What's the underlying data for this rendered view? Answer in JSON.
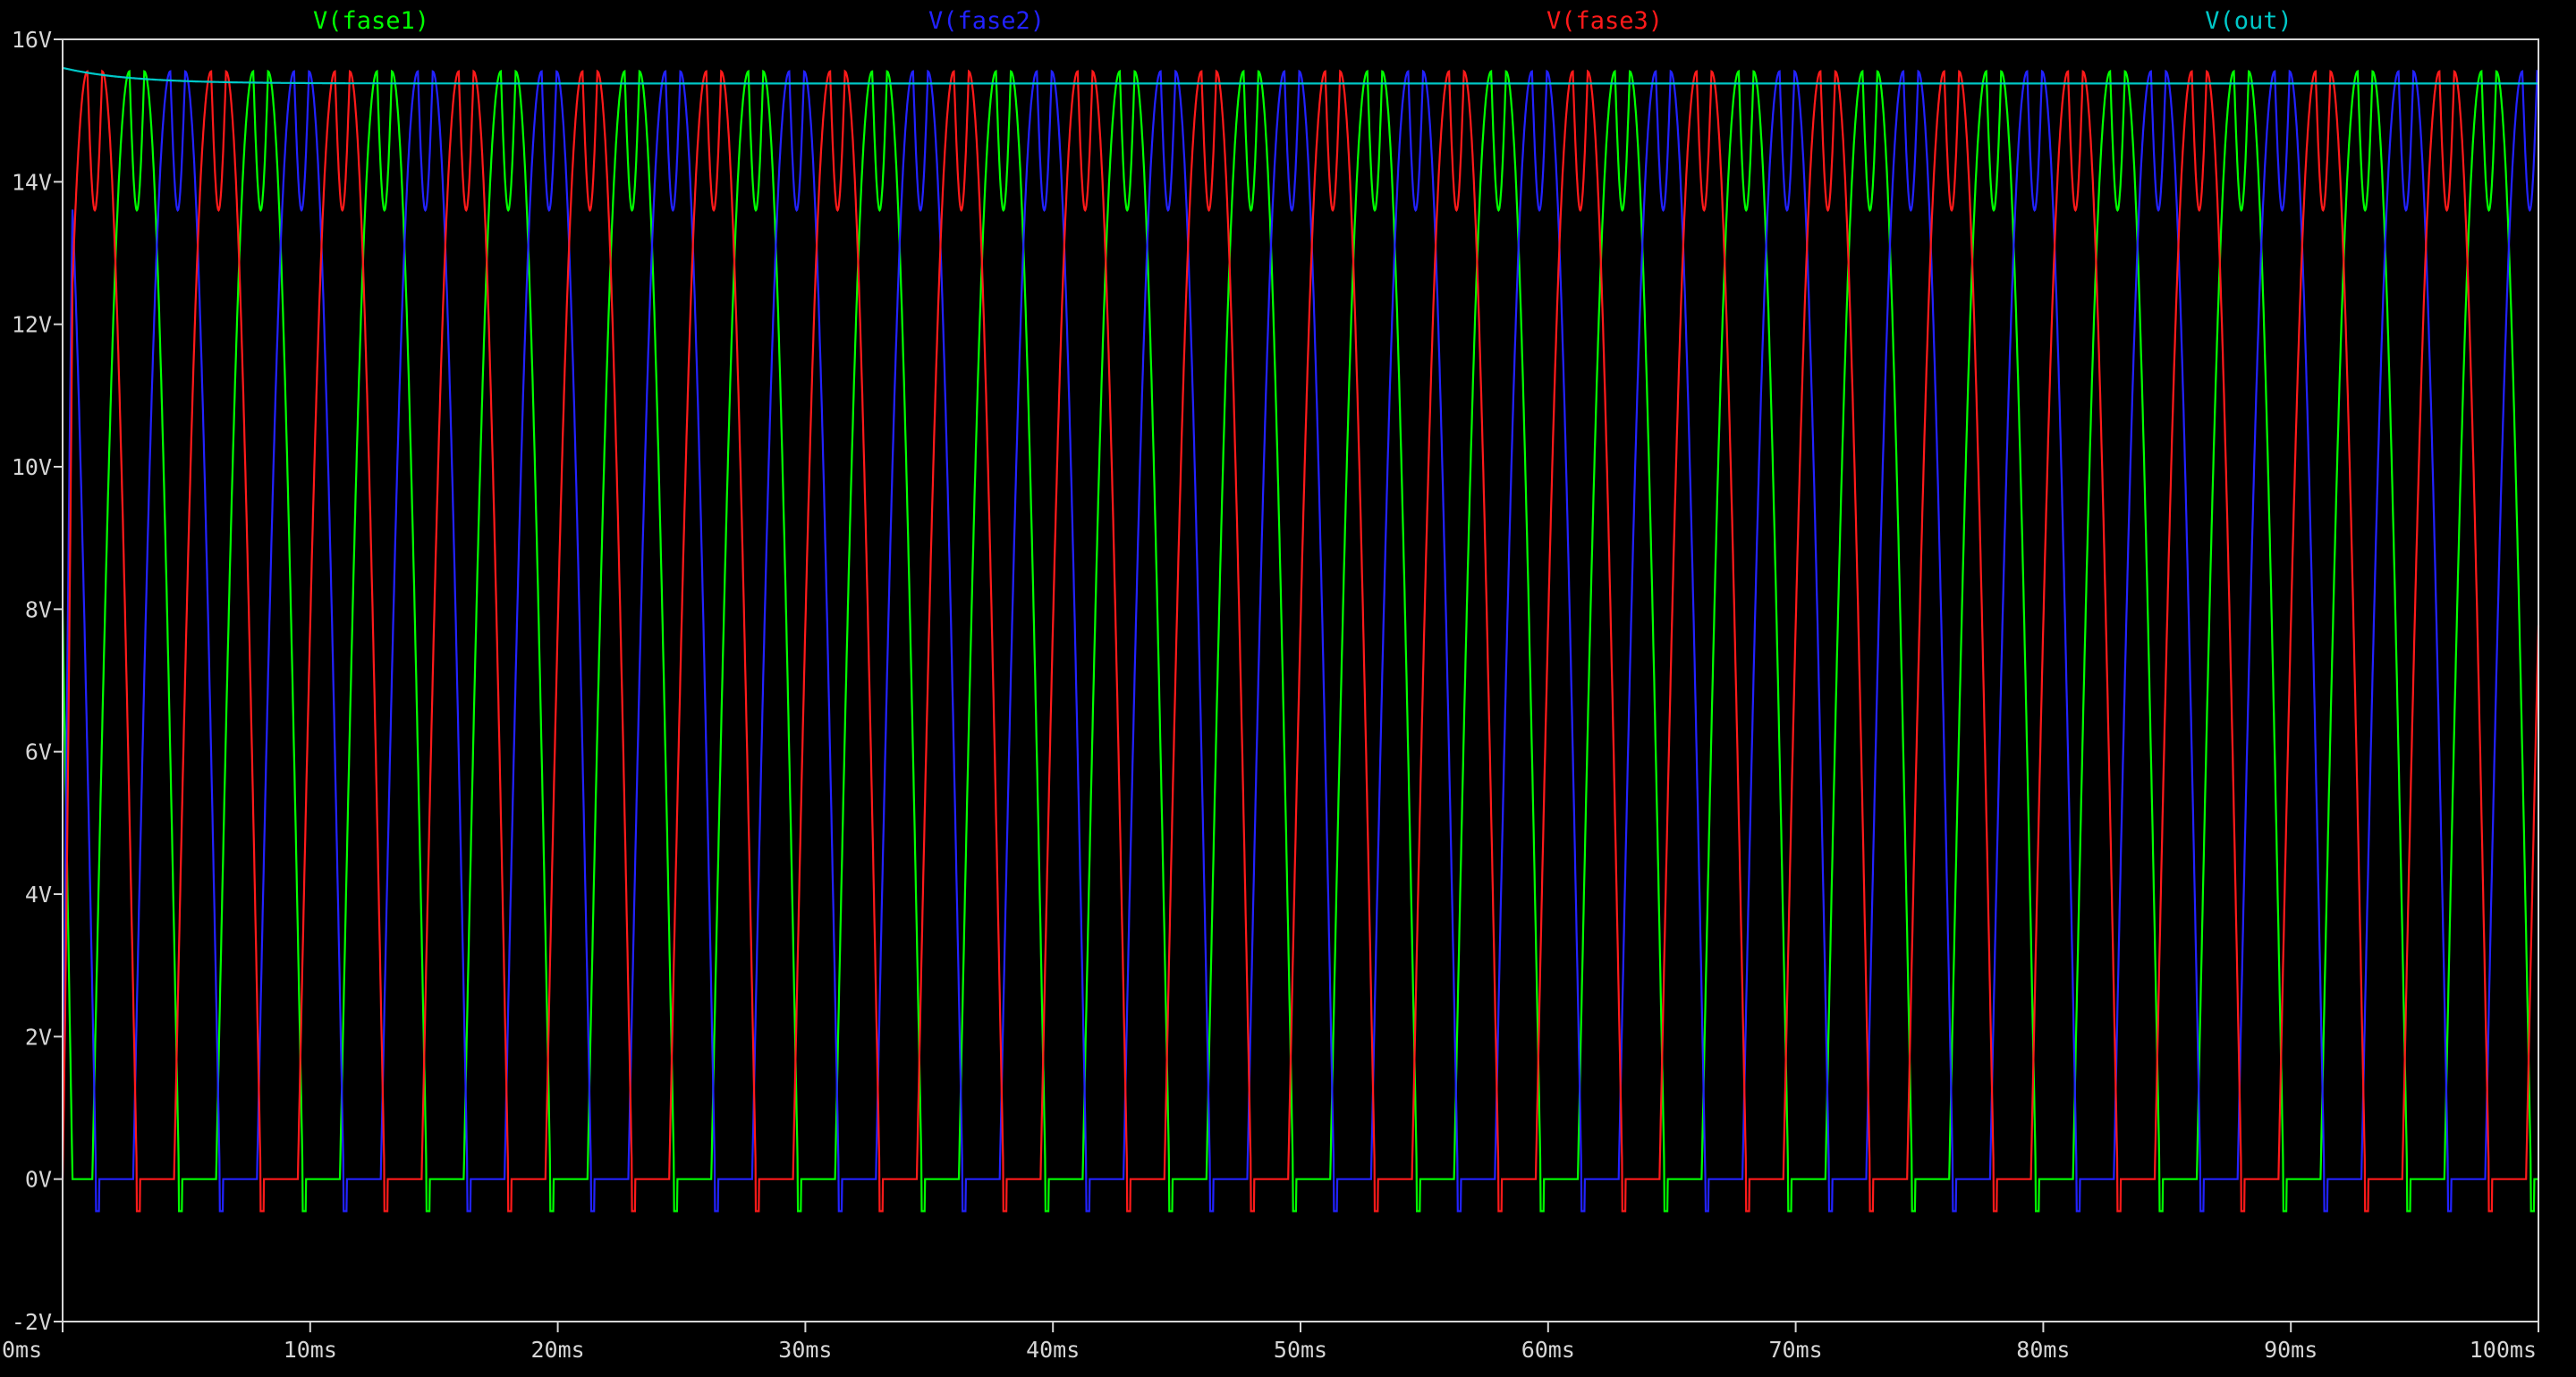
{
  "chart_data": {
    "type": "line",
    "title": "",
    "xlabel": "",
    "ylabel": "",
    "background": "#000000",
    "axis_color": "#d6d6d6",
    "grid": false,
    "legend": "top, above plot",
    "xlim": [
      0,
      100
    ],
    "ylim": [
      -2,
      16
    ],
    "x_unit": "ms",
    "y_unit": "V",
    "x_ticks": [
      0,
      10,
      20,
      30,
      40,
      50,
      60,
      70,
      80,
      90,
      100
    ],
    "y_ticks": [
      -2,
      0,
      2,
      4,
      6,
      8,
      10,
      12,
      14,
      16
    ],
    "x_tick_labels": [
      "0ms",
      "10ms",
      "20ms",
      "30ms",
      "40ms",
      "50ms",
      "60ms",
      "70ms",
      "80ms",
      "90ms",
      "100ms"
    ],
    "y_tick_labels": [
      "-2V",
      "0V",
      "2V",
      "4V",
      "6V",
      "8V",
      "10V",
      "12V",
      "14V",
      "16V"
    ],
    "series": [
      {
        "name": "V(fase1)",
        "color": "#00ff00",
        "period_ms": 5.0,
        "phase_ms": 1.2,
        "peak_v": 15.55,
        "trough_v": 13.6,
        "floor_v": 0,
        "undershoot_v": -0.45
      },
      {
        "name": "V(fase2)",
        "color": "#2222ff",
        "period_ms": 5.0,
        "phase_ms": 2.85,
        "peak_v": 15.55,
        "trough_v": 13.6,
        "floor_v": 0,
        "undershoot_v": -0.45
      },
      {
        "name": "V(fase3)",
        "color": "#ff1a1a",
        "period_ms": 5.0,
        "phase_ms": 4.5,
        "peak_v": 15.55,
        "trough_v": 13.6,
        "floor_v": 0,
        "undershoot_v": -0.45
      },
      {
        "name": "V(out)",
        "color": "#00c8c8",
        "start_v": 15.6,
        "steady_v": 15.38,
        "settle_ms": 8
      }
    ]
  }
}
